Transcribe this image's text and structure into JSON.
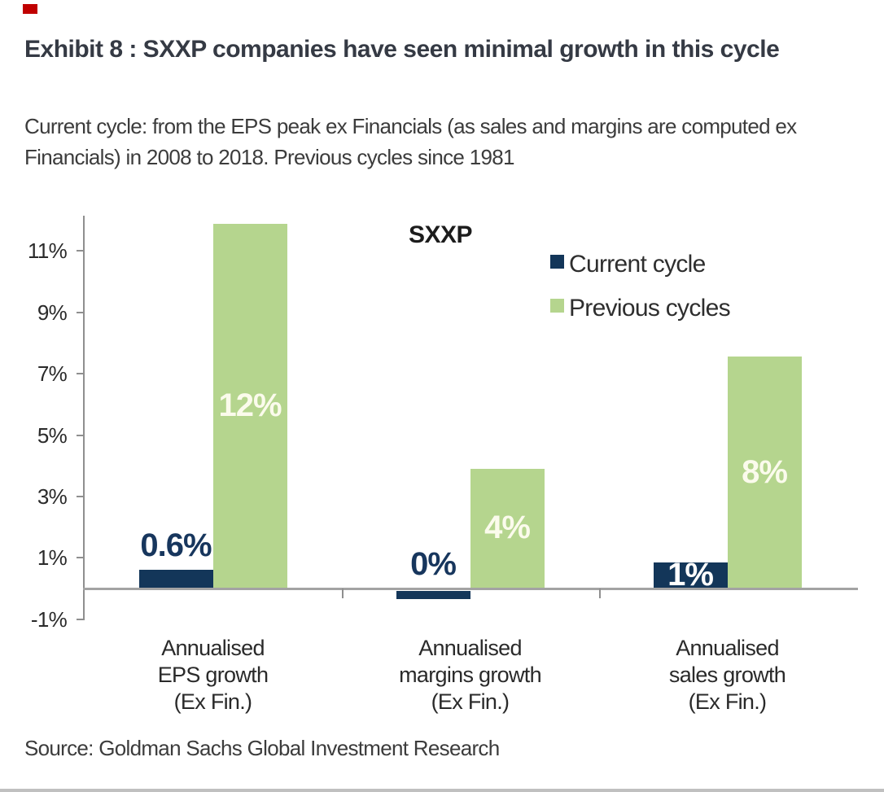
{
  "page": {
    "title": "Exhibit 8 : SXXP companies have seen minimal growth in this cycle",
    "subtitle": "Current cycle: from the EPS peak ex Financials (as sales and margins are computed ex Financials) in 2008 to 2018. Previous cycles since 1981",
    "source": "Source: Goldman Sachs Global Investment Research",
    "accent_color": "#c00000"
  },
  "chart_data": {
    "type": "bar",
    "title": "SXXP",
    "categories": [
      "Annualised\nEPS growth\n(Ex Fin.)",
      "Annualised\nmargins growth\n(Ex Fin.)",
      "Annualised\nsales growth\n(Ex Fin.)"
    ],
    "series": [
      {
        "name": "Current cycle",
        "color": "#133659",
        "values": [
          0.6,
          0,
          1
        ],
        "labels": [
          "0.6%",
          "0%",
          "1%"
        ],
        "bar_heights_pct_drawn": [
          0.6,
          -0.27,
          0.85
        ],
        "label_placement": [
          "above",
          "above",
          "inside"
        ],
        "label_color_above": "#17365d",
        "label_color_inside": "#ffffff"
      },
      {
        "name": "Previous cycles",
        "color": "#b5d58e",
        "values": [
          12,
          4,
          8
        ],
        "labels": [
          "12%",
          "4%",
          "8%"
        ],
        "bar_heights_pct_drawn": [
          11.88,
          3.9,
          7.55
        ],
        "label_placement": [
          "inside",
          "inside",
          "inside"
        ],
        "label_color_above": "#17365d",
        "label_color_inside": "#fbfbec"
      }
    ],
    "xlabel": "",
    "ylabel": "",
    "ytick_values": [
      11,
      9,
      7,
      5,
      3,
      1,
      -1
    ],
    "ytick_labels": [
      "11%",
      "9%",
      "7%",
      "5%",
      "3%",
      "1%",
      "-1%"
    ],
    "ylim": [
      -1.3,
      12.2
    ],
    "grid": false,
    "legend_position": "top-right"
  }
}
